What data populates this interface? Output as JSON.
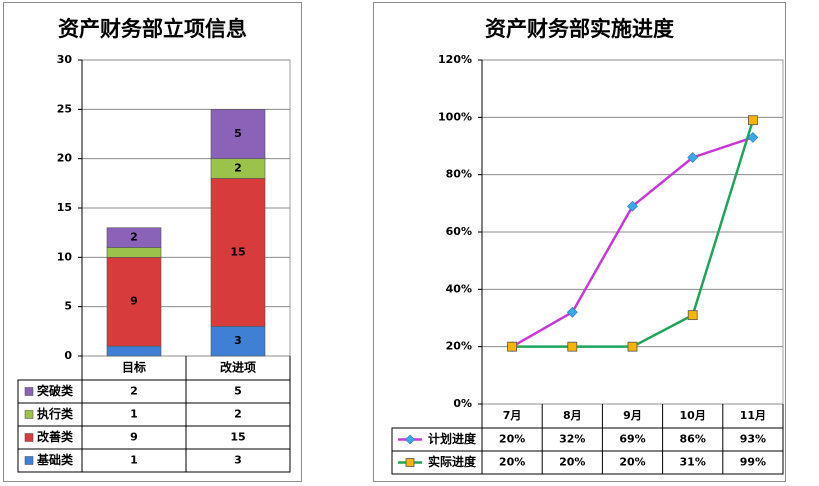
{
  "charts": [
    {
      "title": "资产财务部立项信息",
      "chart_data": {
        "type": "bar",
        "stacked": true,
        "categories": [
          "目标",
          "改进项"
        ],
        "ylim": [
          0,
          30
        ],
        "yticks": [
          "0",
          "5",
          "10",
          "15",
          "20",
          "25",
          "30"
        ],
        "grid": true,
        "legend_placement": "data-table-left",
        "series": [
          {
            "name": "基础类",
            "values": [
              1,
              3
            ],
            "color": "#3f7fd4"
          },
          {
            "name": "改善类",
            "values": [
              9,
              15
            ],
            "color": "#d83b3b"
          },
          {
            "name": "执行类",
            "values": [
              1,
              2
            ],
            "color": "#9bc24a"
          },
          {
            "name": "突破类",
            "values": [
              2,
              5
            ],
            "color": "#8a62b8"
          }
        ],
        "table_rows": [
          {
            "name": "突破类",
            "cells": [
              "2",
              "5"
            ]
          },
          {
            "name": "执行类",
            "cells": [
              "1",
              "2"
            ]
          },
          {
            "name": "改善类",
            "cells": [
              "9",
              "15"
            ]
          },
          {
            "name": "基础类",
            "cells": [
              "1",
              "3"
            ]
          }
        ]
      }
    },
    {
      "title": "资产财务部实施进度",
      "chart_data": {
        "type": "line",
        "categories": [
          "7月",
          "8月",
          "9月",
          "10月",
          "11月"
        ],
        "ylim": [
          0,
          120
        ],
        "yticks": [
          "0%",
          "20%",
          "40%",
          "60%",
          "80%",
          "100%",
          "120%"
        ],
        "grid": true,
        "legend_placement": "data-table-left",
        "series": [
          {
            "name": "计划进度",
            "values": [
              20,
              32,
              69,
              86,
              93
            ],
            "labels": [
              "20%",
              "32%",
              "69%",
              "86%",
              "93%"
            ],
            "color": "#c838d6",
            "marker": "diamond",
            "marker_color": "#3aa8e8"
          },
          {
            "name": "实际进度",
            "values": [
              20,
              20,
              20,
              31,
              99
            ],
            "labels": [
              "20%",
              "20%",
              "20%",
              "31%",
              "99%"
            ],
            "color": "#1fa55a",
            "marker": "square",
            "marker_color": "#f7b500"
          }
        ]
      }
    }
  ]
}
